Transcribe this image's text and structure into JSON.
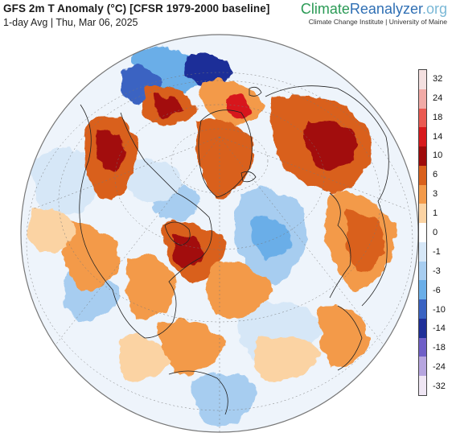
{
  "header": {
    "title": "GFS 2m T Anomaly (°C) [CFSR 1979-2000 baseline]",
    "subtitle": "1-day Avg | Thu, Mar 06, 2025"
  },
  "brand": {
    "part1": "Climate",
    "part2": "Reanalyzer",
    "part3": ".org",
    "affiliation": "Climate Change Institute | University of Maine"
  },
  "legend": {
    "labels": [
      "32",
      "24",
      "18",
      "14",
      "10",
      "6",
      "3",
      "1",
      "0",
      "-1",
      "-3",
      "-6",
      "-10",
      "-14",
      "-18",
      "-24",
      "-32"
    ],
    "colors": [
      "#f4e0e0",
      "#f1aaa6",
      "#ea5a52",
      "#d7191c",
      "#9e0a0a",
      "#d9601c",
      "#f39a4a",
      "#fbd3a3",
      "#ffffff",
      "#d6e7f7",
      "#a7cdf0",
      "#6aaee8",
      "#3a63c2",
      "#1f2f98",
      "#6f5fc7",
      "#b6a5df",
      "#efe6f4"
    ]
  },
  "map": {
    "projection": "orthographic",
    "center": "North Atlantic / North Pole",
    "colors": {
      "ocean_neutral": "#eef4fb",
      "globe_outline": "#777777",
      "warm_strong": "#a21011",
      "warm_mid": "#d9601c",
      "warm_light": "#f39a4a",
      "warm_pale": "#fbd3a3",
      "cool_pale": "#d6e7f7",
      "cool_light": "#a7cdf0",
      "cool_mid": "#6aaee8",
      "cool_strong": "#3a63c2",
      "cool_deep": "#1f2f98",
      "coastline": "#222222"
    }
  }
}
